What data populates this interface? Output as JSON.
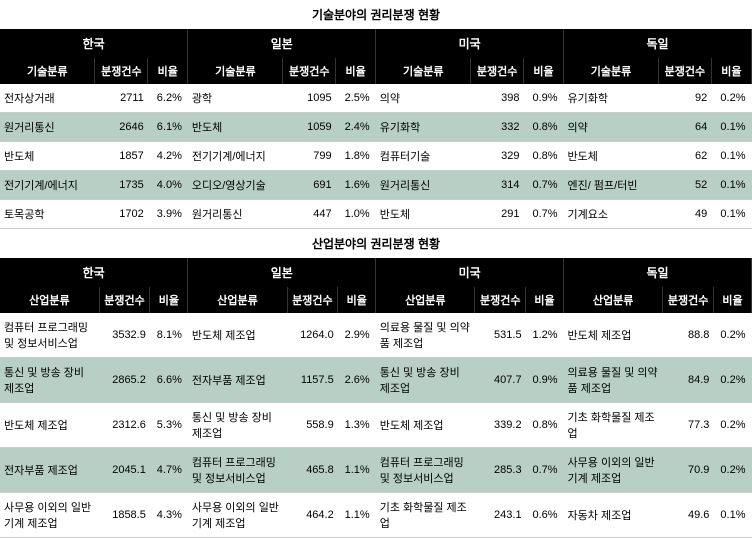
{
  "section1": {
    "title": "기술분야의 권리분쟁 현황",
    "countries": [
      "한국",
      "일본",
      "미국",
      "독일"
    ],
    "headers": [
      "기술분류",
      "분쟁건수",
      "비율"
    ],
    "rows": [
      [
        {
          "cat": "전자상거래",
          "cnt": "2711",
          "pct": "6.2%"
        },
        {
          "cat": "광학",
          "cnt": "1095",
          "pct": "2.5%"
        },
        {
          "cat": "의약",
          "cnt": "398",
          "pct": "0.9%"
        },
        {
          "cat": "유기화학",
          "cnt": "92",
          "pct": "0.2%"
        }
      ],
      [
        {
          "cat": "원거리통신",
          "cnt": "2646",
          "pct": "6.1%"
        },
        {
          "cat": "반도체",
          "cnt": "1059",
          "pct": "2.4%"
        },
        {
          "cat": "유기화학",
          "cnt": "332",
          "pct": "0.8%"
        },
        {
          "cat": "의약",
          "cnt": "64",
          "pct": "0.1%"
        }
      ],
      [
        {
          "cat": "반도체",
          "cnt": "1857",
          "pct": "4.2%"
        },
        {
          "cat": "전기기계/에너지",
          "cnt": "799",
          "pct": "1.8%"
        },
        {
          "cat": "컴퓨터기술",
          "cnt": "329",
          "pct": "0.8%"
        },
        {
          "cat": "반도체",
          "cnt": "62",
          "pct": "0.1%"
        }
      ],
      [
        {
          "cat": "전기기계/에너지",
          "cnt": "1735",
          "pct": "4.0%"
        },
        {
          "cat": "오디오/영상기술",
          "cnt": "691",
          "pct": "1.6%"
        },
        {
          "cat": "원거리통신",
          "cnt": "314",
          "pct": "0.7%"
        },
        {
          "cat": "엔진/ 펌프/터빈",
          "cnt": "52",
          "pct": "0.1%"
        }
      ],
      [
        {
          "cat": "토목공학",
          "cnt": "1702",
          "pct": "3.9%"
        },
        {
          "cat": "원거리통신",
          "cnt": "447",
          "pct": "1.0%"
        },
        {
          "cat": "반도체",
          "cnt": "291",
          "pct": "0.7%"
        },
        {
          "cat": "기계요소",
          "cnt": "49",
          "pct": "0.1%"
        }
      ]
    ]
  },
  "section2": {
    "title": "산업분야의 권리분쟁 현황",
    "countries": [
      "한국",
      "일본",
      "미국",
      "독일"
    ],
    "headers": [
      "산업분류",
      "분쟁건수",
      "비율"
    ],
    "rows": [
      [
        {
          "cat": "컴퓨터 프로그래밍 및 정보서비스업",
          "cnt": "3532.9",
          "pct": "8.1%"
        },
        {
          "cat": "반도체 제조업",
          "cnt": "1264.0",
          "pct": "2.9%"
        },
        {
          "cat": "의료용 물질 및 의약품 제조업",
          "cnt": "531.5",
          "pct": "1.2%"
        },
        {
          "cat": "반도체 제조업",
          "cnt": "88.8",
          "pct": "0.2%"
        }
      ],
      [
        {
          "cat": "통신 및 방송 장비 제조업",
          "cnt": "2865.2",
          "pct": "6.6%"
        },
        {
          "cat": "전자부품 제조업",
          "cnt": "1157.5",
          "pct": "2.6%"
        },
        {
          "cat": "통신 및 방송 장비 제조업",
          "cnt": "407.7",
          "pct": "0.9%"
        },
        {
          "cat": "의료용 물질 및 의약품 제조업",
          "cnt": "84.9",
          "pct": "0.2%"
        }
      ],
      [
        {
          "cat": "반도체 제조업",
          "cnt": "2312.6",
          "pct": "5.3%"
        },
        {
          "cat": "통신 및 방송 장비 제조업",
          "cnt": "558.9",
          "pct": "1.3%"
        },
        {
          "cat": "반도체 제조업",
          "cnt": "339.2",
          "pct": "0.8%"
        },
        {
          "cat": "기초 화학물질 제조업",
          "cnt": "77.3",
          "pct": "0.2%"
        }
      ],
      [
        {
          "cat": "전자부품 제조업",
          "cnt": "2045.1",
          "pct": "4.7%"
        },
        {
          "cat": "컴퓨터 프로그래밍 및 정보서비스업",
          "cnt": "465.8",
          "pct": "1.1%"
        },
        {
          "cat": "컴퓨터 프로그래밍 및 정보서비스업",
          "cnt": "285.3",
          "pct": "0.7%"
        },
        {
          "cat": "사무용 이외의 일반 기계 제조업",
          "cnt": "70.9",
          "pct": "0.2%"
        }
      ],
      [
        {
          "cat": "사무용 이외의 일반 기계 제조업",
          "cnt": "1858.5",
          "pct": "4.3%"
        },
        {
          "cat": "사무용 이외의 일반 기계 제조업",
          "cnt": "464.2",
          "pct": "1.1%"
        },
        {
          "cat": "기초 화학물질 제조업",
          "cnt": "243.1",
          "pct": "0.6%"
        },
        {
          "cat": "자동차 제조업",
          "cnt": "49.6",
          "pct": "0.1%"
        }
      ]
    ]
  }
}
